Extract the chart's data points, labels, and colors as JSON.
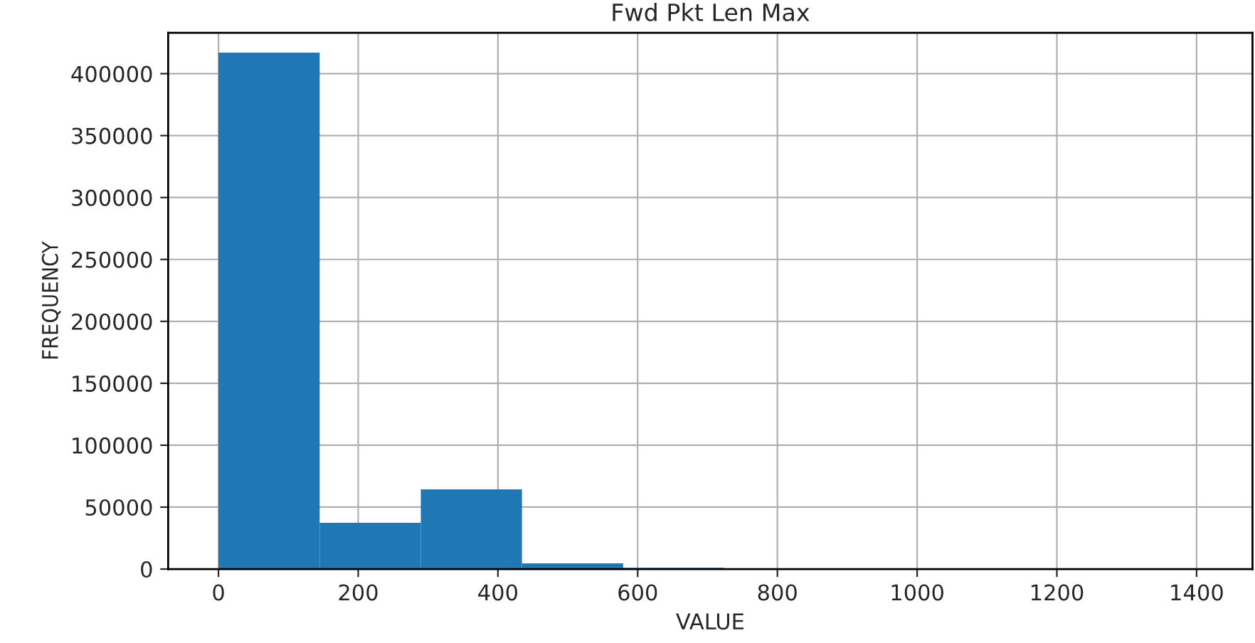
{
  "chart_data": {
    "type": "histogram",
    "title": "Fwd Pkt Len Max",
    "xlabel": "VALUE",
    "ylabel": "FREQUENCY",
    "bins": [
      0,
      144.8,
      289.6,
      434.4,
      579.2,
      724,
      868.8,
      1013.6,
      1158.4,
      1303.2,
      1448
    ],
    "values": [
      417000,
      37400,
      64400,
      4600,
      1000,
      0,
      0,
      0,
      0,
      0
    ],
    "color": "#1f77b4",
    "xlim": [
      -72,
      1480
    ],
    "xticks": [
      0,
      200,
      400,
      600,
      800,
      1000,
      1200,
      1400
    ],
    "ylim": [
      0,
      433000
    ],
    "yticks": [
      0,
      50000,
      100000,
      150000,
      200000,
      250000,
      300000,
      350000,
      400000
    ],
    "grid": true
  }
}
